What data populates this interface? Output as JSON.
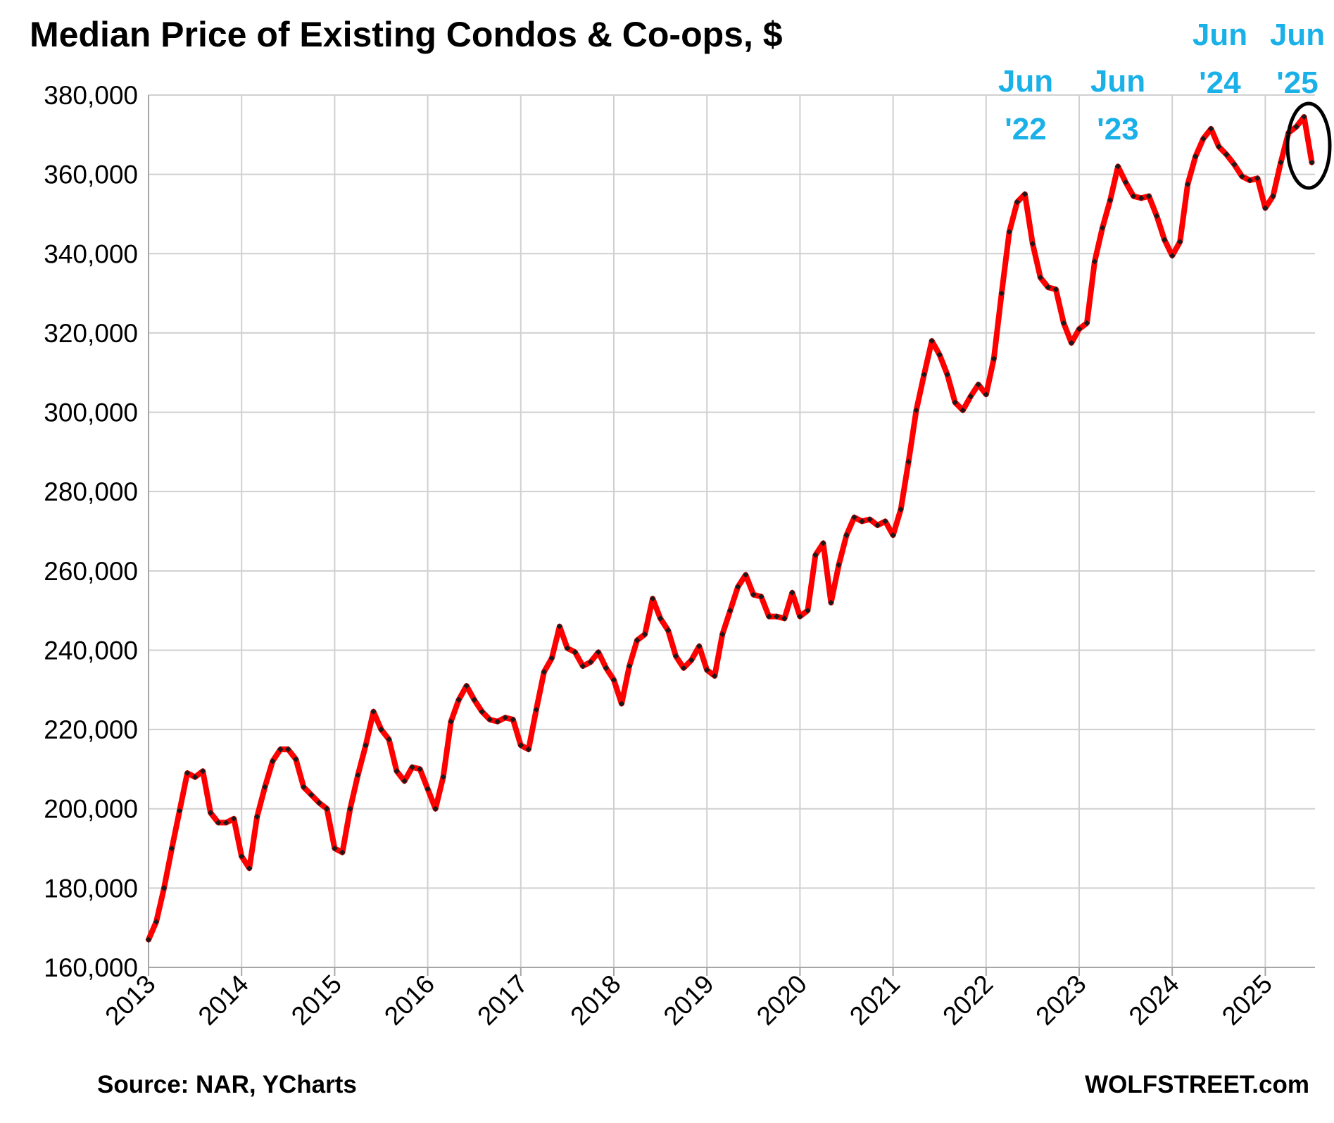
{
  "chart_data": {
    "type": "line",
    "title": "Median Price of Existing Condos & Co-ops, $",
    "xlabel": "",
    "ylabel": "",
    "ylim": [
      160000,
      380000
    ],
    "yticks": [
      "160,000",
      "180,000",
      "200,000",
      "220,000",
      "240,000",
      "260,000",
      "280,000",
      "300,000",
      "320,000",
      "340,000",
      "360,000",
      "380,000"
    ],
    "xticks": [
      "2013",
      "2014",
      "2015",
      "2016",
      "2017",
      "2018",
      "2019",
      "2020",
      "2021",
      "2022",
      "2023",
      "2024",
      "2025"
    ],
    "grid": true,
    "legend": "none",
    "series": [
      {
        "x_start": "2013-01",
        "frequency": "monthly",
        "values": [
          167000,
          171500,
          180000,
          190000,
          199500,
          209000,
          208000,
          209500,
          199000,
          196500,
          196500,
          197500,
          188000,
          185000,
          198000,
          205500,
          212000,
          215000,
          215000,
          212500,
          205500,
          203500,
          201500,
          200000,
          190000,
          189000,
          200000,
          208500,
          216000,
          224500,
          220000,
          217500,
          209500,
          207000,
          210500,
          210000,
          205000,
          200000,
          208000,
          222000,
          227500,
          231000,
          227500,
          224500,
          222500,
          222000,
          223000,
          222500,
          216000,
          215000,
          225000,
          234500,
          238000,
          246000,
          240500,
          239500,
          236000,
          237000,
          239500,
          235500,
          232500,
          226500,
          236000,
          242500,
          244000,
          253000,
          248000,
          245000,
          238500,
          235500,
          237500,
          241000,
          235000,
          233500,
          244000,
          250000,
          256000,
          259000,
          254000,
          253500,
          248500,
          248500,
          248000,
          254500,
          248500,
          250000,
          264000,
          267000,
          252000,
          261500,
          269000,
          273500,
          272500,
          273000,
          271500,
          272500,
          269000,
          275500,
          287500,
          300500,
          309500,
          318000,
          314500,
          309500,
          302500,
          300500,
          304000,
          307000,
          304500,
          313500,
          330000,
          345500,
          353000,
          355000,
          342500,
          334000,
          331500,
          331000,
          322500,
          317500,
          321000,
          322500,
          338000,
          346500,
          353500,
          362000,
          358000,
          354500,
          354000,
          354500,
          349500,
          343500,
          339500,
          343000,
          357500,
          364500,
          369000,
          371500,
          367000,
          365000,
          362500,
          359500,
          358500,
          359000,
          351500,
          354500,
          363000,
          370500,
          372000,
          374500,
          363000
        ]
      }
    ],
    "annotations": [
      {
        "line1": "Jun",
        "line2": "'22",
        "target": "2022-06"
      },
      {
        "line1": "Jun",
        "line2": "'23",
        "target": "2023-06"
      },
      {
        "line1": "Jun",
        "line2": "'24",
        "target": "2024-06"
      },
      {
        "line1": "Jun",
        "line2": "'25",
        "target": "2025-06"
      }
    ],
    "colors": {
      "line": "#ff0000",
      "markers": "#1a1a1a",
      "annotation": "#1ab0e8",
      "grid": "#d0d0d0",
      "axis": "#a6a6a6",
      "highlight_ellipse": "#000000"
    }
  },
  "footer": {
    "source": "Source: NAR, YCharts",
    "brand": "WOLFSTREET.com"
  }
}
